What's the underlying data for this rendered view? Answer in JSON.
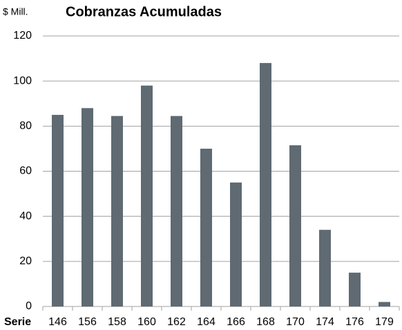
{
  "chart_data": {
    "type": "bar",
    "title": "Cobranzas Acumuladas",
    "y_label": "$ Mill.",
    "x_label": "Serie",
    "categories": [
      "146",
      "156",
      "158",
      "160",
      "162",
      "164",
      "166",
      "168",
      "170",
      "174",
      "176",
      "179"
    ],
    "values": [
      85,
      88,
      84.5,
      98,
      84.5,
      70,
      55,
      108,
      71.5,
      34,
      15,
      2
    ],
    "color": "#5f6a72",
    "ylim": [
      0,
      120
    ],
    "yticks": [
      0,
      20,
      40,
      60,
      80,
      100,
      120
    ],
    "grid": true
  }
}
